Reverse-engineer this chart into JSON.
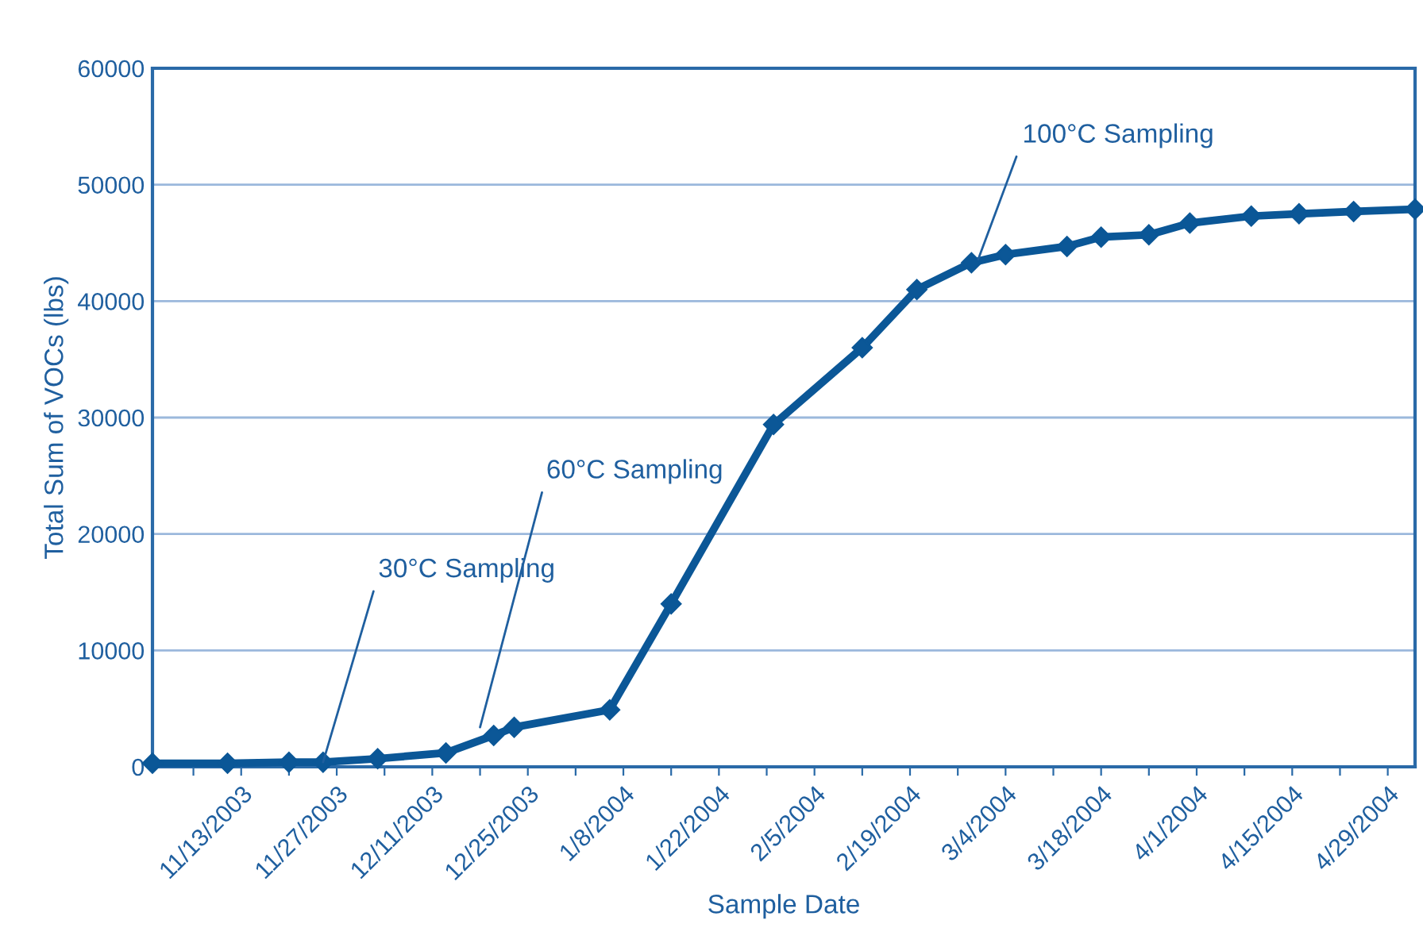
{
  "chart_data": {
    "type": "line",
    "xlabel": "Sample Date",
    "ylabel": "Total Sum of VOCs (lbs)",
    "x": [
      "2003-10-31",
      "2003-11-11",
      "2003-11-20",
      "2003-11-25",
      "2003-12-03",
      "2003-12-13",
      "2003-12-20",
      "2003-12-23",
      "2004-01-06",
      "2004-01-15",
      "2004-01-30",
      "2004-02-12",
      "2004-02-20",
      "2004-02-28",
      "2004-03-04",
      "2004-03-13",
      "2004-03-18",
      "2004-03-25",
      "2004-03-31",
      "2004-04-09",
      "2004-04-16",
      "2004-04-24",
      "2004-05-03"
    ],
    "series": [
      {
        "color": "#0b5797",
        "values": [
          300,
          300,
          400,
          400,
          700,
          1200,
          2700,
          3400,
          4900,
          14000,
          29400,
          36000,
          41000,
          43300,
          44000,
          44700,
          45500,
          45700,
          46700,
          47300,
          47500,
          47700,
          47900
        ]
      }
    ],
    "marker": "diamond",
    "line_style": "solid",
    "grid": "y",
    "legend": false,
    "xlim": [
      "2003-10-31",
      "2004-05-03"
    ],
    "xticks": [
      {
        "value": "2003-11-06",
        "label": null
      },
      {
        "value": "2003-11-13",
        "label": "11/13/2003"
      },
      {
        "value": "2003-11-20",
        "label": null
      },
      {
        "value": "2003-11-27",
        "label": "11/27/2003"
      },
      {
        "value": "2003-12-04",
        "label": null
      },
      {
        "value": "2003-12-11",
        "label": "12/11/2003"
      },
      {
        "value": "2003-12-18",
        "label": null
      },
      {
        "value": "2003-12-25",
        "label": "12/25/2003"
      },
      {
        "value": "2004-01-01",
        "label": null
      },
      {
        "value": "2004-01-08",
        "label": "1/8/2004"
      },
      {
        "value": "2004-01-15",
        "label": null
      },
      {
        "value": "2004-01-22",
        "label": "1/22/2004"
      },
      {
        "value": "2004-01-29",
        "label": null
      },
      {
        "value": "2004-02-05",
        "label": "2/5/2004"
      },
      {
        "value": "2004-02-12",
        "label": null
      },
      {
        "value": "2004-02-19",
        "label": "2/19/2004"
      },
      {
        "value": "2004-02-26",
        "label": null
      },
      {
        "value": "2004-03-04",
        "label": "3/4/2004"
      },
      {
        "value": "2004-03-11",
        "label": null
      },
      {
        "value": "2004-03-18",
        "label": "3/18/2004"
      },
      {
        "value": "2004-03-25",
        "label": null
      },
      {
        "value": "2004-04-01",
        "label": "4/1/2004"
      },
      {
        "value": "2004-04-08",
        "label": null
      },
      {
        "value": "2004-04-15",
        "label": "4/15/2004"
      },
      {
        "value": "2004-04-22",
        "label": null
      },
      {
        "value": "2004-04-29",
        "label": "4/29/2004"
      }
    ],
    "ylim": [
      0,
      60000
    ],
    "yticks": [
      0,
      10000,
      20000,
      30000,
      40000,
      50000,
      60000
    ],
    "annotations": [
      {
        "text": "30°C Sampling",
        "x": "2003-11-25",
        "y": 400
      },
      {
        "text": "60°C Sampling",
        "x": "2003-12-18",
        "y": 3400
      },
      {
        "text": "100°C Sampling",
        "x": "2004-02-29",
        "y": 43600
      }
    ]
  }
}
